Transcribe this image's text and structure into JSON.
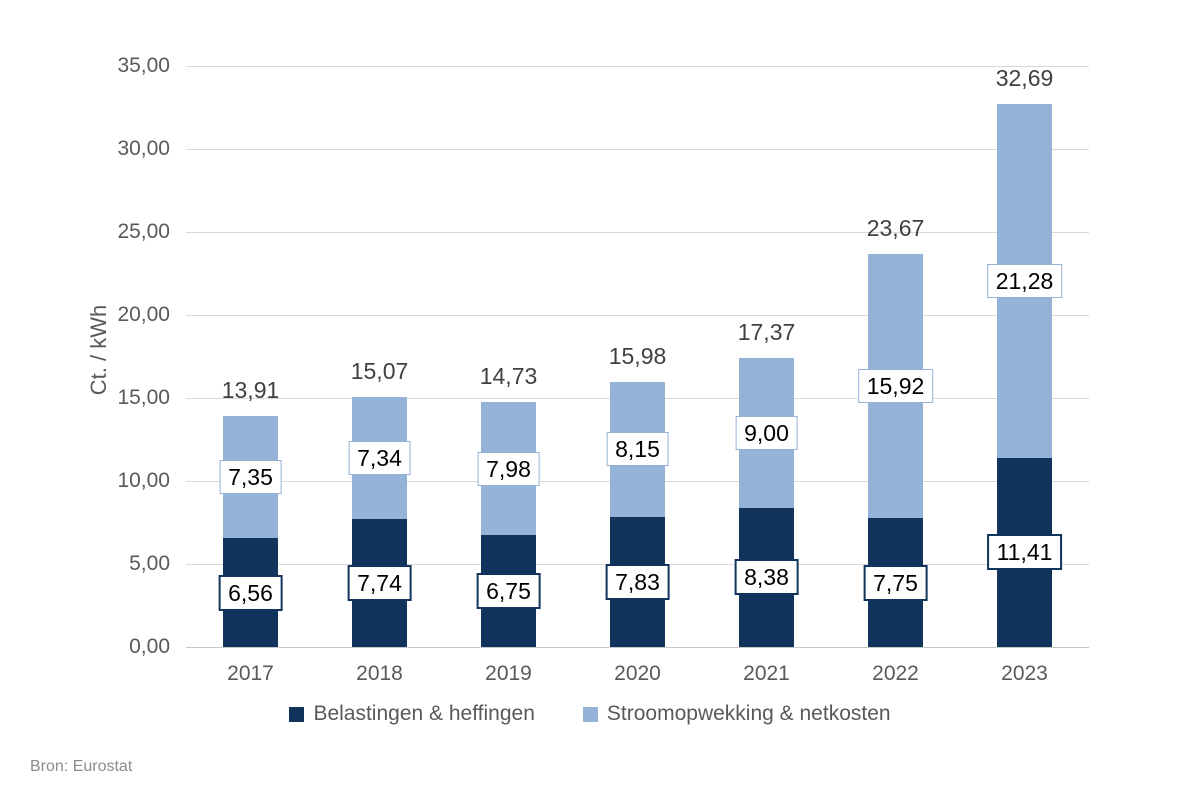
{
  "chart_data": {
    "type": "bar",
    "stacked": true,
    "title": "",
    "xlabel": "",
    "ylabel": "Ct. / kWh",
    "categories": [
      "2017",
      "2018",
      "2019",
      "2020",
      "2021",
      "2022",
      "2023"
    ],
    "series": [
      {
        "name": "Belastingen & heffingen",
        "color": "#10345C",
        "values": [
          6.56,
          7.74,
          6.75,
          7.83,
          8.38,
          7.75,
          11.41
        ]
      },
      {
        "name": "Stroomopwekking & netkosten",
        "color": "#95B3D7",
        "values": [
          7.35,
          7.34,
          7.98,
          8.15,
          9.0,
          15.92,
          21.28
        ]
      }
    ],
    "totals": [
      13.91,
      15.07,
      14.73,
      15.98,
      17.37,
      23.67,
      32.69
    ],
    "ylim": [
      0,
      35
    ],
    "ytick_step": 5,
    "ytick_labels": [
      "0,00",
      "5,00",
      "10,00",
      "15,00",
      "20,00",
      "25,00",
      "30,00",
      "35,00"
    ],
    "decimal_separator": ",",
    "grid": true,
    "legend_position": "bottom",
    "value_label_boxes": true
  },
  "colors": {
    "background": "#FFFFFF",
    "gridline": "#D9D9D9",
    "axis_line": "#C6C6C6",
    "tick_text": "#595959",
    "total_text": "#404040",
    "label_box_bg": "#FFFFFF",
    "source_text": "#8C8C8C"
  },
  "source_note": "Bron: Eurostat"
}
